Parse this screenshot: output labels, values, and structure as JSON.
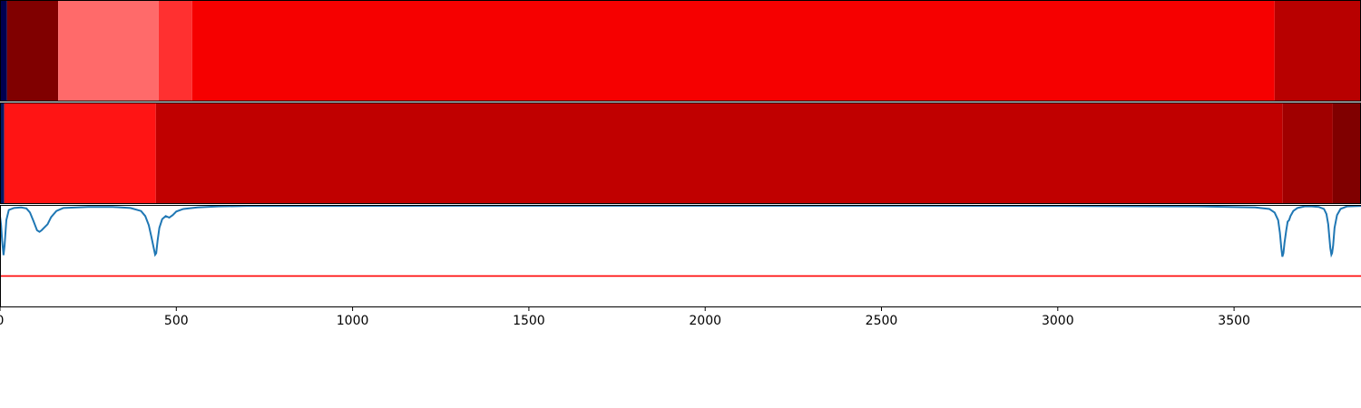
{
  "chart_data": {
    "type": "heatmap",
    "xlim": [
      0,
      3860
    ],
    "x_ticks": [
      0,
      500,
      1000,
      1500,
      2000,
      2500,
      3000,
      3500
    ],
    "x_tick_labels": [
      "0",
      "500",
      "1000",
      "1500",
      "2000",
      "2500",
      "3000",
      "3500"
    ],
    "grid": false,
    "strips": [
      {
        "segments": [
          {
            "start": 0,
            "end": 20,
            "color": "#000050"
          },
          {
            "start": 20,
            "end": 165,
            "color": "#800000"
          },
          {
            "start": 165,
            "end": 450,
            "color": "#ff6a6a"
          },
          {
            "start": 450,
            "end": 545,
            "color": "#ff3030"
          },
          {
            "start": 545,
            "end": 3615,
            "color": "#f60000"
          },
          {
            "start": 3615,
            "end": 3860,
            "color": "#b80000"
          }
        ]
      },
      {
        "segments": [
          {
            "start": 0,
            "end": 12,
            "color": "#001a66"
          },
          {
            "start": 12,
            "end": 442,
            "color": "#ff1414"
          },
          {
            "start": 442,
            "end": 3638,
            "color": "#c00000"
          },
          {
            "start": 3638,
            "end": 3780,
            "color": "#a00000"
          },
          {
            "start": 3780,
            "end": 3860,
            "color": "#800000"
          }
        ]
      }
    ],
    "signal": {
      "color": "#1f77b4",
      "ylim": [
        -2.0,
        0.0
      ],
      "x": [
        0,
        3,
        6,
        10,
        13,
        18,
        25,
        40,
        60,
        75,
        85,
        95,
        105,
        112,
        118,
        125,
        135,
        145,
        160,
        180,
        250,
        320,
        370,
        400,
        412,
        422,
        430,
        436,
        440,
        443,
        447,
        452,
        460,
        470,
        480,
        490,
        500,
        520,
        560,
        620,
        700,
        900,
        1500,
        2000,
        2500,
        3000,
        3400,
        3560,
        3600,
        3615,
        3625,
        3630,
        3634,
        3637,
        3640,
        3643,
        3648,
        3652,
        3656,
        3660,
        3668,
        3680,
        3700,
        3720,
        3740,
        3755,
        3762,
        3767,
        3770,
        3773,
        3776,
        3778,
        3781,
        3785,
        3792,
        3802,
        3820,
        3860
      ],
      "y": [
        -0.22,
        -0.4,
        -0.7,
        -0.99,
        -0.8,
        -0.3,
        -0.1,
        -0.06,
        -0.05,
        -0.07,
        -0.15,
        -0.32,
        -0.5,
        -0.53,
        -0.5,
        -0.45,
        -0.38,
        -0.24,
        -0.12,
        -0.06,
        -0.04,
        -0.04,
        -0.06,
        -0.12,
        -0.22,
        -0.4,
        -0.65,
        -0.85,
        -0.98,
        -0.95,
        -0.7,
        -0.45,
        -0.28,
        -0.22,
        -0.25,
        -0.2,
        -0.13,
        -0.08,
        -0.05,
        -0.03,
        -0.02,
        -0.02,
        -0.015,
        -0.015,
        -0.015,
        -0.02,
        -0.03,
        -0.05,
        -0.08,
        -0.15,
        -0.3,
        -0.55,
        -0.85,
        -1.02,
        -0.95,
        -0.75,
        -0.5,
        -0.33,
        -0.3,
        -0.22,
        -0.12,
        -0.06,
        -0.03,
        -0.03,
        -0.04,
        -0.08,
        -0.18,
        -0.38,
        -0.62,
        -0.85,
        -0.98,
        -0.95,
        -0.8,
        -0.45,
        -0.2,
        -0.08,
        -0.03,
        -0.02
      ]
    },
    "threshold": {
      "y": -1.4,
      "color": "#ff0000"
    }
  }
}
